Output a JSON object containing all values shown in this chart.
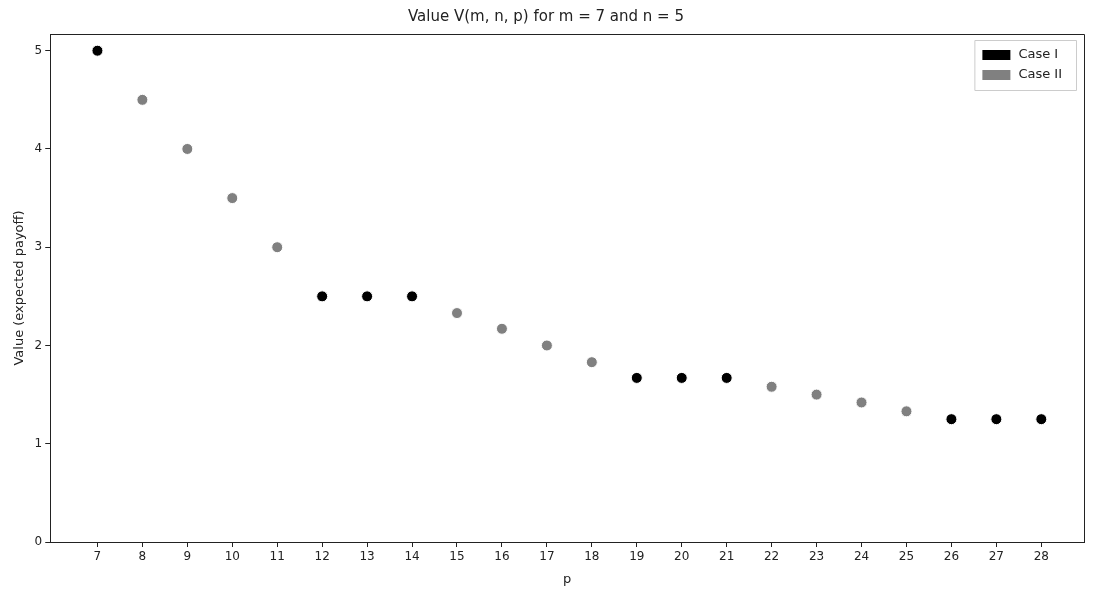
{
  "chart_data": {
    "type": "scatter",
    "title": "Value V(m, n, p) for m = 7 and n = 5",
    "xlabel": "p",
    "ylabel": "Value (expected payoff)",
    "series": [
      {
        "name": "Case I",
        "color": "#000000",
        "x": [
          7,
          12,
          13,
          14,
          19,
          20,
          21,
          26,
          27,
          28
        ],
        "values": [
          5,
          2.5,
          2.5,
          2.5,
          1.67,
          1.67,
          1.67,
          1.25,
          1.25,
          1.25
        ]
      },
      {
        "name": "Case II",
        "color": "#808080",
        "x": [
          8,
          9,
          10,
          11,
          15,
          16,
          17,
          18,
          22,
          23,
          24,
          25
        ],
        "values": [
          4.5,
          4,
          3.5,
          3,
          2.33,
          2.17,
          2,
          1.83,
          1.58,
          1.5,
          1.42,
          1.33
        ]
      }
    ],
    "xlim": [
      5.95,
      28.95
    ],
    "xticks": [
      7,
      8,
      9,
      10,
      11,
      12,
      13,
      14,
      15,
      16,
      17,
      18,
      19,
      20,
      21,
      22,
      23,
      24,
      25,
      26,
      27,
      28
    ],
    "ylim": [
      0,
      5.17
    ],
    "yticks": [
      0,
      1,
      2,
      3,
      4,
      5
    ],
    "grid": false,
    "legend": "top right",
    "marker": "circle"
  }
}
